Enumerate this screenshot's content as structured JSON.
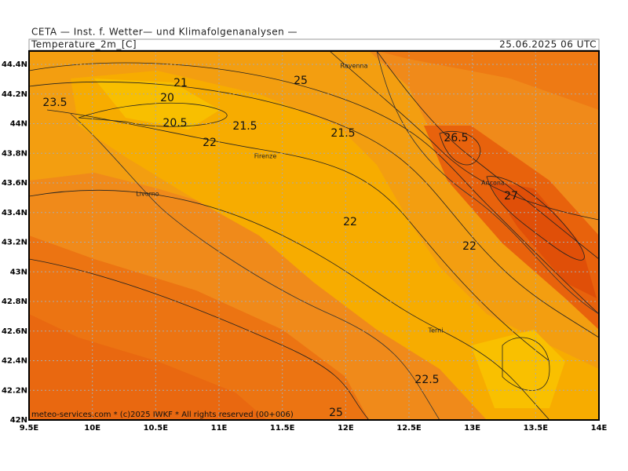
{
  "header": "CETA — Inst. f. Wetter— und Klimafolgenanalysen —",
  "title": "Temperature_2m_[C]",
  "date": "25.06.2025 06 UTC",
  "footer": "meteo-services.com * (c)2025 IWKF * All rights reserved (00+006)",
  "x_axis": {
    "labels": [
      "9.5E",
      "10E",
      "10.5E",
      "11E",
      "11.5E",
      "12E",
      "12.5E",
      "13E",
      "13.5E",
      "14E"
    ]
  },
  "y_axis": {
    "labels": [
      "42N",
      "42.2N",
      "42.4N",
      "42.6N",
      "42.8N",
      "43N",
      "43.2N",
      "43.4N",
      "43.6N",
      "43.8N",
      "44N",
      "44.2N",
      "44.4N"
    ]
  },
  "cities": [
    "Ravenna",
    "Firenze",
    "Livorno",
    "Ancona",
    "Terni"
  ],
  "contour_labels": [
    "21",
    "25",
    "23.5",
    "20",
    "20.5",
    "21.5",
    "21.5",
    "22",
    "26.5",
    "27",
    "22",
    "22",
    "22.5",
    "25"
  ]
}
